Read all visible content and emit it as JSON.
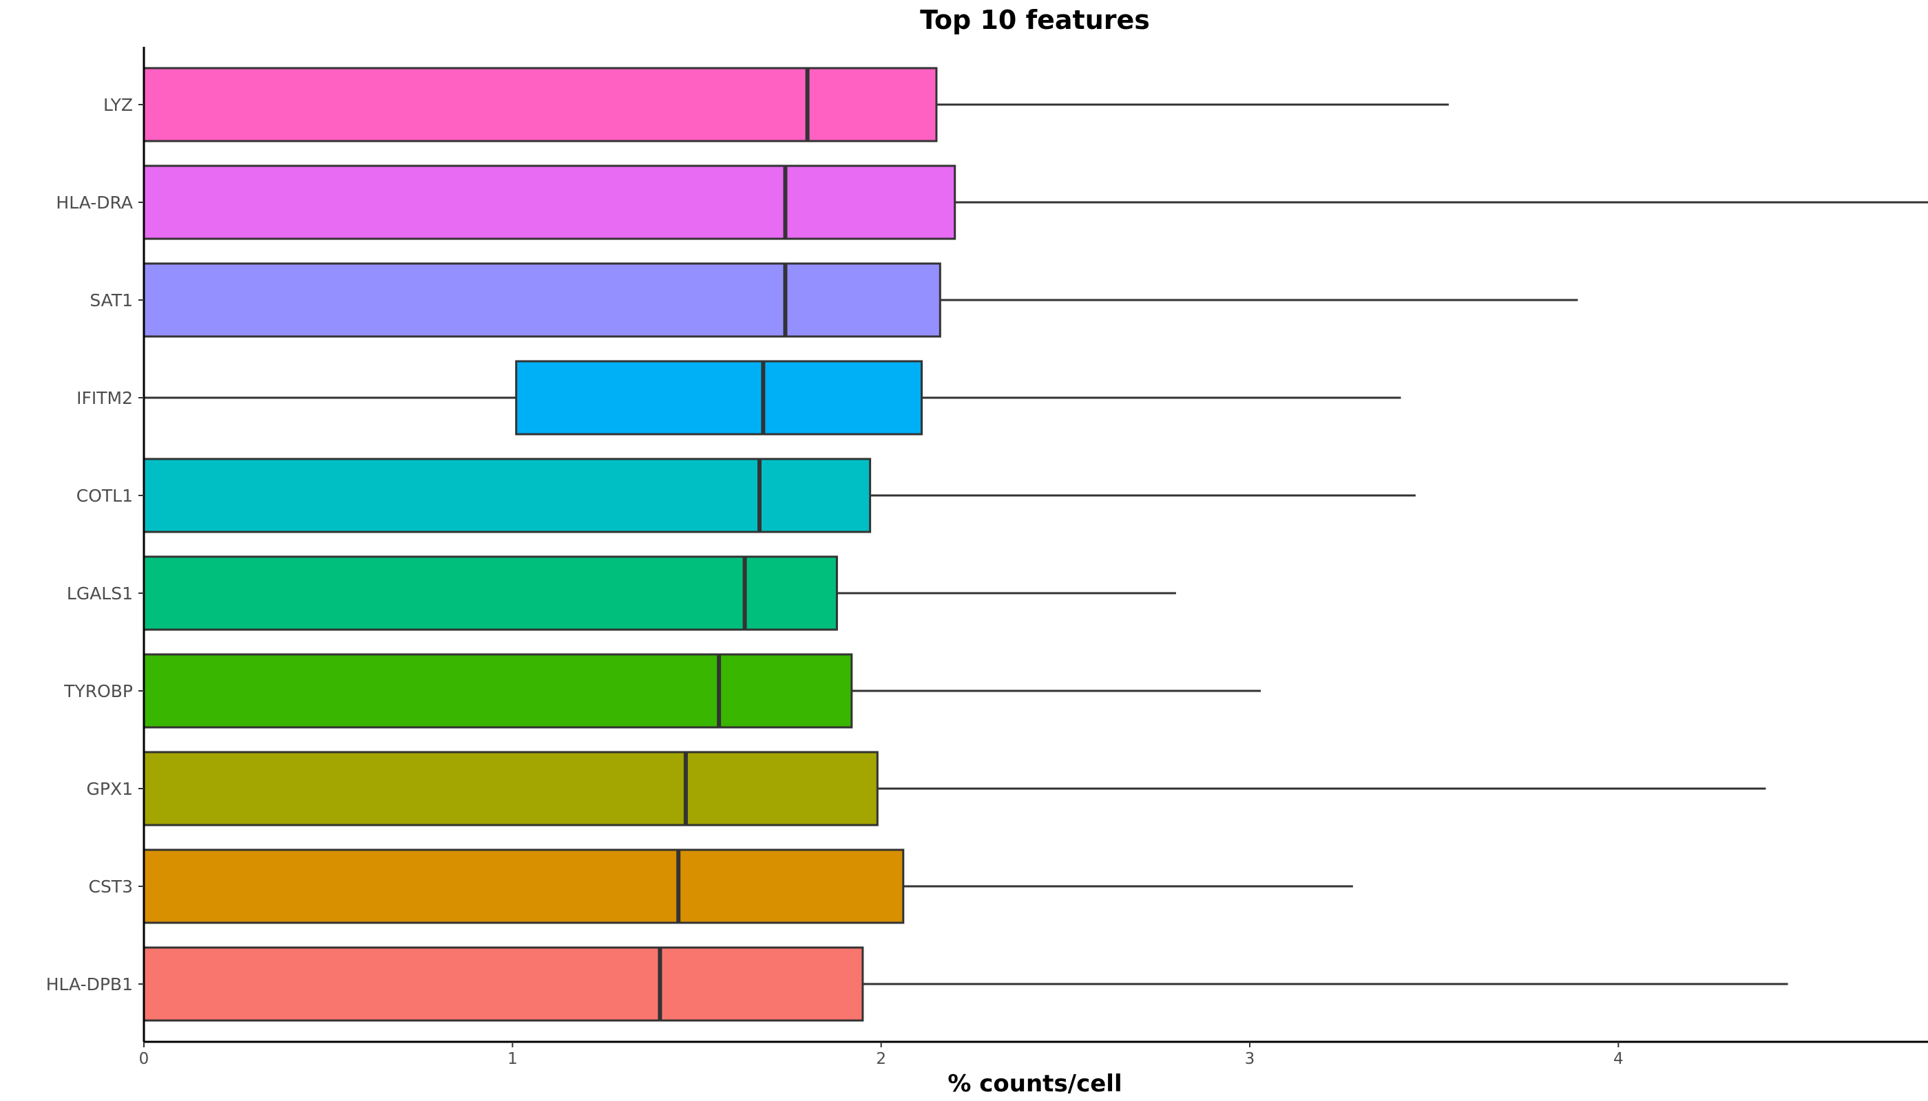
{
  "chart_data": {
    "type": "boxplot",
    "orientation": "horizontal",
    "title": "Top 10 features",
    "xlabel": "% counts/cell",
    "ylabel": "",
    "xlim": [
      0,
      4.84
    ],
    "xticks": [
      0,
      1,
      2,
      3,
      4
    ],
    "grid": false,
    "legend": "none",
    "categories": [
      "LYZ",
      "HLA-DRA",
      "SAT1",
      "IFITM2",
      "COTL1",
      "LGALS1",
      "TYROBP",
      "GPX1",
      "CST3",
      "HLA-DPB1"
    ],
    "series": [
      {
        "category": "LYZ",
        "min": 0,
        "q1": 0,
        "median": 1.8,
        "q3": 2.15,
        "max": 3.54,
        "color": "#FF61C3"
      },
      {
        "category": "HLA-DRA",
        "min": 0,
        "q1": 0,
        "median": 1.74,
        "q3": 2.2,
        "max": 4.84,
        "color": "#E76BF3"
      },
      {
        "category": "SAT1",
        "min": 0,
        "q1": 0,
        "median": 1.74,
        "q3": 2.16,
        "max": 3.89,
        "color": "#9590FF"
      },
      {
        "category": "IFITM2",
        "min": 0,
        "q1": 1.01,
        "median": 1.68,
        "q3": 2.11,
        "max": 3.41,
        "color": "#00B0F6"
      },
      {
        "category": "COTL1",
        "min": 0,
        "q1": 0,
        "median": 1.67,
        "q3": 1.97,
        "max": 3.45,
        "color": "#00BFC4"
      },
      {
        "category": "LGALS1",
        "min": 0,
        "q1": 0,
        "median": 1.63,
        "q3": 1.88,
        "max": 2.8,
        "color": "#00BF7D"
      },
      {
        "category": "TYROBP",
        "min": 0,
        "q1": 0,
        "median": 1.56,
        "q3": 1.92,
        "max": 3.03,
        "color": "#39B600"
      },
      {
        "category": "GPX1",
        "min": 0,
        "q1": 0,
        "median": 1.47,
        "q3": 1.99,
        "max": 4.4,
        "color": "#A3A500"
      },
      {
        "category": "CST3",
        "min": 0,
        "q1": 0,
        "median": 1.45,
        "q3": 2.06,
        "max": 3.28,
        "color": "#D89000"
      },
      {
        "category": "HLA-DPB1",
        "min": 0,
        "q1": 0,
        "median": 1.4,
        "q3": 1.95,
        "max": 4.46,
        "color": "#F8766D"
      }
    ]
  }
}
